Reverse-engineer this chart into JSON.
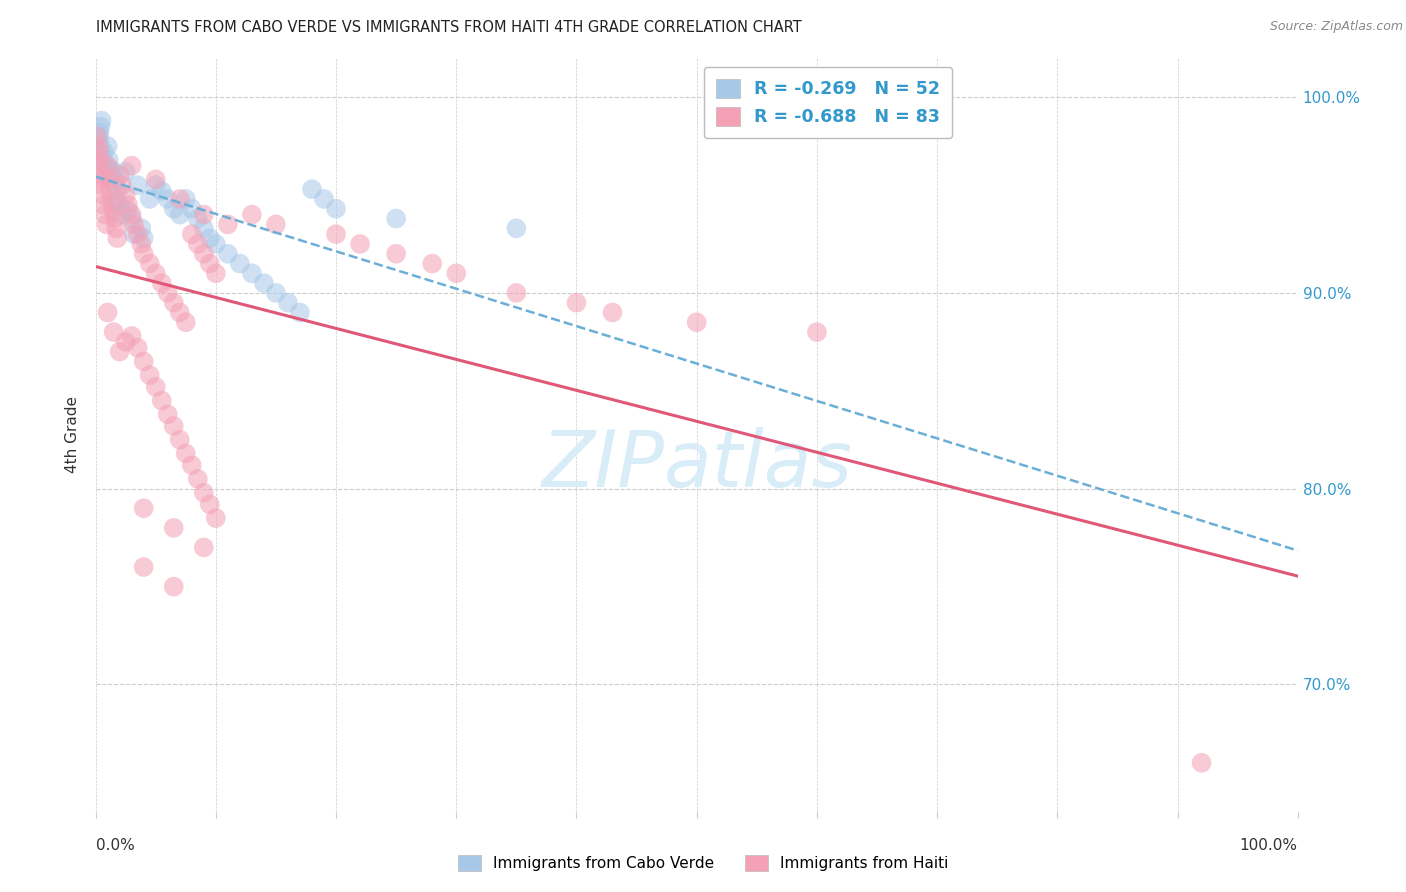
{
  "title": "IMMIGRANTS FROM CABO VERDE VS IMMIGRANTS FROM HAITI 4TH GRADE CORRELATION CHART",
  "source": "Source: ZipAtlas.com",
  "ylabel": "4th Grade",
  "R1": -0.269,
  "N1": 52,
  "R2": -0.688,
  "N2": 83,
  "color_blue": "#a8c8e8",
  "color_pink": "#f4a0b5",
  "color_trendline_blue": "#6baed6",
  "color_trendline_pink": "#e05878",
  "legend_label1": "Immigrants from Cabo Verde",
  "legend_label2": "Immigrants from Haiti",
  "watermark_color": "#d8edf8",
  "grid_color": "#cccccc",
  "right_tick_color": "#3399cc",
  "cabo_verde_points": [
    [
      0.002,
      0.978
    ],
    [
      0.003,
      0.982
    ],
    [
      0.004,
      0.975
    ],
    [
      0.003,
      0.98
    ],
    [
      0.005,
      0.97
    ],
    [
      0.006,
      0.968
    ],
    [
      0.004,
      0.985
    ],
    [
      0.007,
      0.972
    ],
    [
      0.005,
      0.988
    ],
    [
      0.008,
      0.965
    ],
    [
      0.009,
      0.96
    ],
    [
      0.01,
      0.975
    ],
    [
      0.011,
      0.968
    ],
    [
      0.012,
      0.963
    ],
    [
      0.013,
      0.958
    ],
    [
      0.015,
      0.962
    ],
    [
      0.016,
      0.957
    ],
    [
      0.017,
      0.948
    ],
    [
      0.018,
      0.953
    ],
    [
      0.02,
      0.945
    ],
    [
      0.022,
      0.94
    ],
    [
      0.025,
      0.962
    ],
    [
      0.027,
      0.942
    ],
    [
      0.03,
      0.938
    ],
    [
      0.032,
      0.93
    ],
    [
      0.035,
      0.955
    ],
    [
      0.038,
      0.933
    ],
    [
      0.04,
      0.928
    ],
    [
      0.045,
      0.948
    ],
    [
      0.05,
      0.955
    ],
    [
      0.055,
      0.952
    ],
    [
      0.06,
      0.948
    ],
    [
      0.065,
      0.943
    ],
    [
      0.07,
      0.94
    ],
    [
      0.075,
      0.948
    ],
    [
      0.08,
      0.943
    ],
    [
      0.085,
      0.938
    ],
    [
      0.09,
      0.933
    ],
    [
      0.095,
      0.928
    ],
    [
      0.1,
      0.925
    ],
    [
      0.11,
      0.92
    ],
    [
      0.12,
      0.915
    ],
    [
      0.13,
      0.91
    ],
    [
      0.14,
      0.905
    ],
    [
      0.15,
      0.9
    ],
    [
      0.16,
      0.895
    ],
    [
      0.17,
      0.89
    ],
    [
      0.18,
      0.953
    ],
    [
      0.19,
      0.948
    ],
    [
      0.2,
      0.943
    ],
    [
      0.25,
      0.938
    ],
    [
      0.35,
      0.933
    ]
  ],
  "haiti_points": [
    [
      0.001,
      0.98
    ],
    [
      0.002,
      0.975
    ],
    [
      0.003,
      0.968
    ],
    [
      0.004,
      0.96
    ],
    [
      0.003,
      0.972
    ],
    [
      0.005,
      0.955
    ],
    [
      0.006,
      0.95
    ],
    [
      0.004,
      0.965
    ],
    [
      0.007,
      0.945
    ],
    [
      0.005,
      0.958
    ],
    [
      0.008,
      0.94
    ],
    [
      0.009,
      0.935
    ],
    [
      0.01,
      0.965
    ],
    [
      0.011,
      0.958
    ],
    [
      0.012,
      0.952
    ],
    [
      0.013,
      0.947
    ],
    [
      0.015,
      0.942
    ],
    [
      0.016,
      0.938
    ],
    [
      0.017,
      0.933
    ],
    [
      0.018,
      0.928
    ],
    [
      0.02,
      0.96
    ],
    [
      0.022,
      0.955
    ],
    [
      0.025,
      0.95
    ],
    [
      0.027,
      0.945
    ],
    [
      0.03,
      0.94
    ],
    [
      0.032,
      0.935
    ],
    [
      0.035,
      0.93
    ],
    [
      0.038,
      0.925
    ],
    [
      0.04,
      0.92
    ],
    [
      0.045,
      0.915
    ],
    [
      0.05,
      0.91
    ],
    [
      0.055,
      0.905
    ],
    [
      0.06,
      0.9
    ],
    [
      0.065,
      0.895
    ],
    [
      0.07,
      0.89
    ],
    [
      0.075,
      0.885
    ],
    [
      0.08,
      0.93
    ],
    [
      0.085,
      0.925
    ],
    [
      0.09,
      0.92
    ],
    [
      0.095,
      0.915
    ],
    [
      0.1,
      0.91
    ],
    [
      0.01,
      0.89
    ],
    [
      0.015,
      0.88
    ],
    [
      0.02,
      0.87
    ],
    [
      0.025,
      0.875
    ],
    [
      0.03,
      0.878
    ],
    [
      0.035,
      0.872
    ],
    [
      0.04,
      0.865
    ],
    [
      0.045,
      0.858
    ],
    [
      0.05,
      0.852
    ],
    [
      0.055,
      0.845
    ],
    [
      0.06,
      0.838
    ],
    [
      0.065,
      0.832
    ],
    [
      0.07,
      0.825
    ],
    [
      0.075,
      0.818
    ],
    [
      0.08,
      0.812
    ],
    [
      0.085,
      0.805
    ],
    [
      0.09,
      0.798
    ],
    [
      0.095,
      0.792
    ],
    [
      0.1,
      0.785
    ],
    [
      0.03,
      0.965
    ],
    [
      0.05,
      0.958
    ],
    [
      0.07,
      0.948
    ],
    [
      0.09,
      0.94
    ],
    [
      0.11,
      0.935
    ],
    [
      0.13,
      0.94
    ],
    [
      0.15,
      0.935
    ],
    [
      0.2,
      0.93
    ],
    [
      0.22,
      0.925
    ],
    [
      0.25,
      0.92
    ],
    [
      0.28,
      0.915
    ],
    [
      0.3,
      0.91
    ],
    [
      0.35,
      0.9
    ],
    [
      0.4,
      0.895
    ],
    [
      0.43,
      0.89
    ],
    [
      0.5,
      0.885
    ],
    [
      0.6,
      0.88
    ],
    [
      0.04,
      0.79
    ],
    [
      0.065,
      0.78
    ],
    [
      0.09,
      0.77
    ],
    [
      0.04,
      0.76
    ],
    [
      0.065,
      0.75
    ],
    [
      0.92,
      0.66
    ]
  ]
}
